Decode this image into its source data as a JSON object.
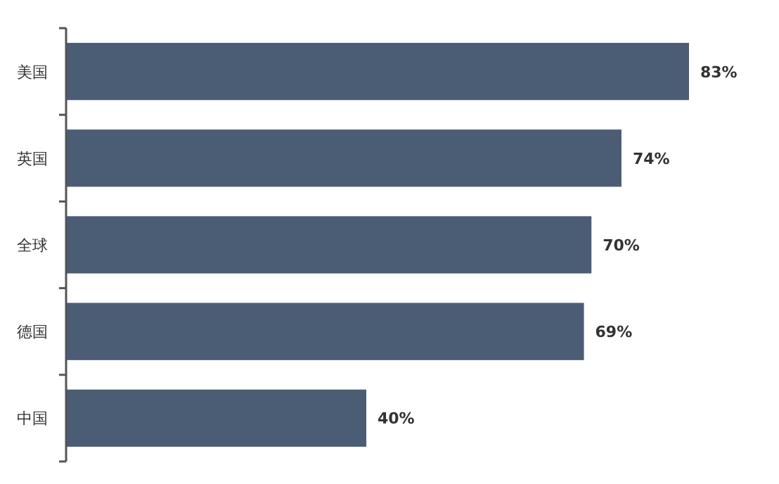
{
  "chart_data": {
    "type": "bar",
    "orientation": "horizontal",
    "categories": [
      "美国",
      "英国",
      "全球",
      "德国",
      "中国"
    ],
    "values": [
      83,
      74,
      70,
      69,
      40
    ],
    "color": "#4a5d75",
    "value_labels": [
      "83%",
      "74%",
      "70%",
      "69%",
      "40%"
    ]
  }
}
